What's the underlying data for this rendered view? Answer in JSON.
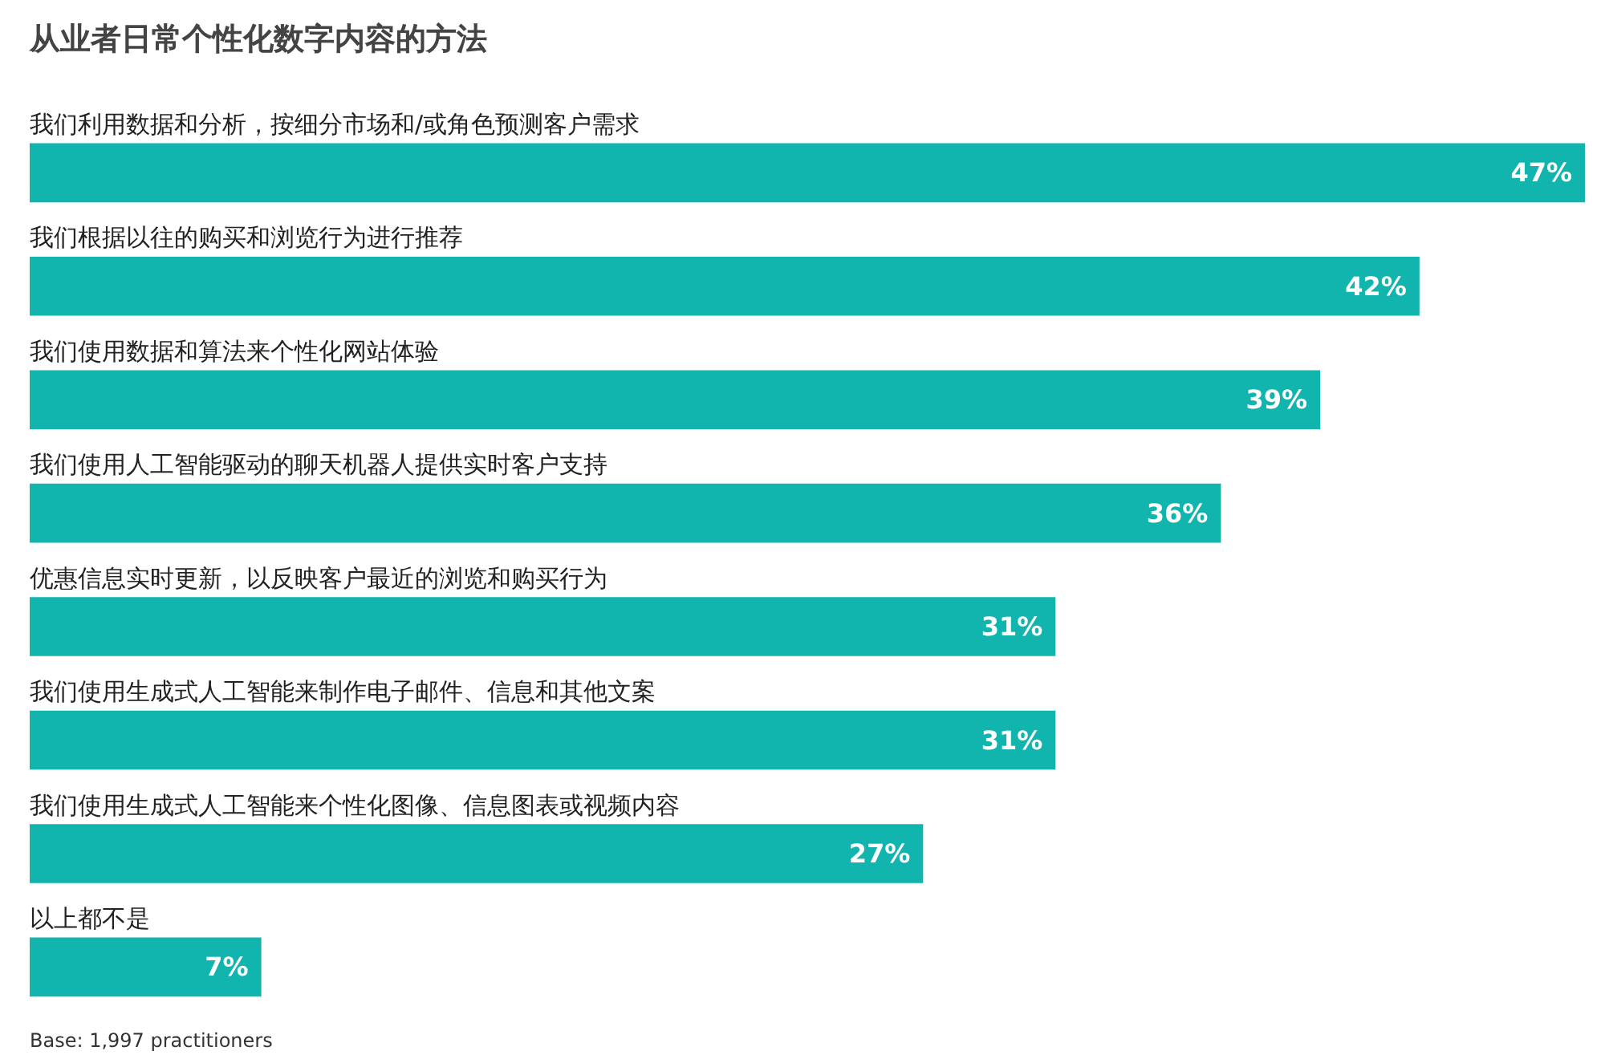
{
  "chart_data": {
    "type": "bar",
    "orientation": "horizontal",
    "title": "从业者日常个性化数字内容的方法",
    "categories": [
      "我们利用数据和分析，按细分市场和/或角色预测客户需求",
      "我们根据以往的购买和浏览行为进行推荐",
      "我们使用数据和算法来个性化网站体验",
      "我们使用人工智能驱动的聊天机器人提供实时客户支持",
      "优惠信息实时更新，以反映客户最近的浏览和购买行为",
      "我们使用生成式人工智能来制作电子邮件、信息和其他文案",
      "我们使用生成式人工智能来个性化图像、信息图表或视频内容",
      "以上都不是"
    ],
    "values": [
      47,
      42,
      39,
      36,
      31,
      31,
      27,
      7
    ],
    "value_labels": [
      "47%",
      "42%",
      "39%",
      "36%",
      "31%",
      "31%",
      "27%",
      "7%"
    ],
    "color": "#12b5ad",
    "annotations": [
      "Base: 1,997 practitioners"
    ]
  }
}
